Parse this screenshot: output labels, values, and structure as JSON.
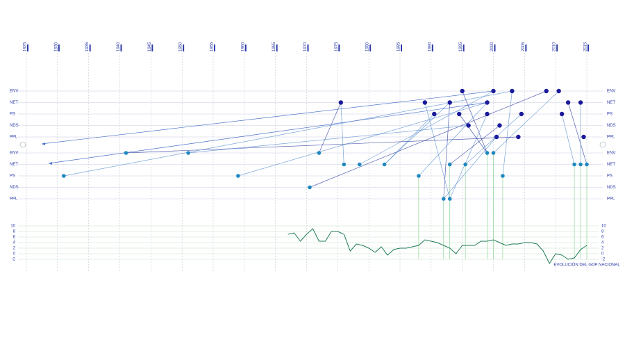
{
  "years": [
    1925,
    1930,
    1935,
    1940,
    1945,
    1950,
    1955,
    1960,
    1965,
    1970,
    1975,
    1980,
    1985,
    1990,
    1995,
    2000,
    2005,
    2010,
    2015
  ],
  "rows_upper": [
    "ENV",
    "NET",
    "PS",
    "NDS",
    "PPL"
  ],
  "rows_lower": [
    "ENV",
    "NET",
    "PS",
    "NDS",
    "PPL"
  ],
  "nodes": [
    {
      "year": 1975.5,
      "row": "NET",
      "level": "upper"
    },
    {
      "year": 1989,
      "row": "NET",
      "level": "upper"
    },
    {
      "year": 1990.5,
      "row": "PS",
      "level": "upper"
    },
    {
      "year": 1993,
      "row": "NET",
      "level": "upper"
    },
    {
      "year": 1995,
      "row": "ENV",
      "level": "upper"
    },
    {
      "year": 1994.5,
      "row": "PS",
      "level": "upper"
    },
    {
      "year": 1996,
      "row": "NDS",
      "level": "upper"
    },
    {
      "year": 1999,
      "row": "NET",
      "level": "upper"
    },
    {
      "year": 1999,
      "row": "PS",
      "level": "upper"
    },
    {
      "year": 2000,
      "row": "ENV",
      "level": "upper"
    },
    {
      "year": 2001,
      "row": "NDS",
      "level": "upper"
    },
    {
      "year": 2000.5,
      "row": "PPL",
      "level": "upper"
    },
    {
      "year": 2003,
      "row": "ENV",
      "level": "upper"
    },
    {
      "year": 2004.5,
      "row": "PS",
      "level": "upper"
    },
    {
      "year": 2004,
      "row": "PPL",
      "level": "upper"
    },
    {
      "year": 2008.5,
      "row": "ENV",
      "level": "upper"
    },
    {
      "year": 2010.5,
      "row": "ENV",
      "level": "upper"
    },
    {
      "year": 2011,
      "row": "PS",
      "level": "upper"
    },
    {
      "year": 2012,
      "row": "NET",
      "level": "upper"
    },
    {
      "year": 2014,
      "row": "NET",
      "level": "upper"
    },
    {
      "year": 2014.5,
      "row": "PPL",
      "level": "upper"
    },
    {
      "year": 1941,
      "row": "ENV",
      "level": "lower"
    },
    {
      "year": 1951,
      "row": "ENV",
      "level": "lower"
    },
    {
      "year": 1931,
      "row": "PS",
      "level": "lower"
    },
    {
      "year": 1959,
      "row": "PS",
      "level": "lower"
    },
    {
      "year": 1972,
      "row": "ENV",
      "level": "lower"
    },
    {
      "year": 1976,
      "row": "NET",
      "level": "lower"
    },
    {
      "year": 1978.5,
      "row": "NET",
      "level": "lower"
    },
    {
      "year": 1982.5,
      "row": "NET",
      "level": "lower"
    },
    {
      "year": 1970.5,
      "row": "NDS",
      "level": "lower"
    },
    {
      "year": 1988,
      "row": "PS",
      "level": "lower"
    },
    {
      "year": 1993,
      "row": "NET",
      "level": "lower"
    },
    {
      "year": 1995.5,
      "row": "NET",
      "level": "lower"
    },
    {
      "year": 1999,
      "row": "ENV",
      "level": "lower"
    },
    {
      "year": 2000,
      "row": "ENV",
      "level": "lower"
    },
    {
      "year": 2001.5,
      "row": "PS",
      "level": "lower"
    },
    {
      "year": 1992,
      "row": "PPL",
      "level": "lower"
    },
    {
      "year": 1993,
      "row": "PPL",
      "level": "lower"
    },
    {
      "year": 2013,
      "row": "NET",
      "level": "lower"
    },
    {
      "year": 2014,
      "row": "NET",
      "level": "lower"
    },
    {
      "year": 2015,
      "row": "NET",
      "level": "lower"
    }
  ],
  "links": [
    [
      0,
      25
    ],
    [
      0,
      26
    ],
    [
      3,
      28
    ],
    [
      3,
      36
    ],
    [
      7,
      30
    ],
    [
      7,
      24
    ],
    [
      4,
      33
    ],
    [
      9,
      27
    ],
    [
      8,
      37
    ],
    [
      10,
      31
    ],
    [
      12,
      35
    ],
    [
      13,
      32
    ],
    [
      15,
      29
    ],
    [
      16,
      34
    ],
    [
      17,
      38
    ],
    [
      18,
      40
    ],
    [
      19,
      39
    ],
    [
      1,
      37
    ],
    [
      5,
      33
    ],
    [
      2,
      28
    ],
    [
      11,
      36
    ],
    [
      14,
      21
    ],
    [
      6,
      22
    ],
    [
      12,
      23
    ]
  ],
  "gdp": {
    "label": "EVOLUCIÓN DEL GDP NACIONAL",
    "yticks": [
      10,
      8,
      6,
      4,
      2,
      0,
      -2
    ],
    "ylim": [
      -2,
      10
    ],
    "x": [
      1967,
      1968,
      1969,
      1970,
      1971,
      1972,
      1973,
      1974,
      1975,
      1976,
      1977,
      1978,
      1979,
      1980,
      1981,
      1982,
      1983,
      1984,
      1985,
      1986,
      1987,
      1988,
      1989,
      1990,
      1991,
      1992,
      1993,
      1994,
      1995,
      1996,
      1997,
      1998,
      1999,
      2000,
      2001,
      2002,
      2003,
      2004,
      2005,
      2006,
      2007,
      2008,
      2009,
      2010,
      2011,
      2012,
      2013,
      2014,
      2015
    ],
    "values": [
      7,
      7.5,
      4.5,
      7,
      9,
      4.5,
      4.5,
      8,
      8,
      7,
      1,
      3.5,
      3,
      2,
      0.5,
      2.5,
      -0.5,
      1.5,
      2,
      2,
      2.5,
      3,
      5,
      4.5,
      4,
      3,
      2,
      0,
      3,
      3,
      3,
      4.5,
      4.5,
      5,
      4,
      3,
      3.5,
      3.5,
      4,
      4,
      3.5,
      1,
      -3.5,
      0,
      -0.5,
      -2,
      -1.5,
      1.5,
      3
    ]
  }
}
